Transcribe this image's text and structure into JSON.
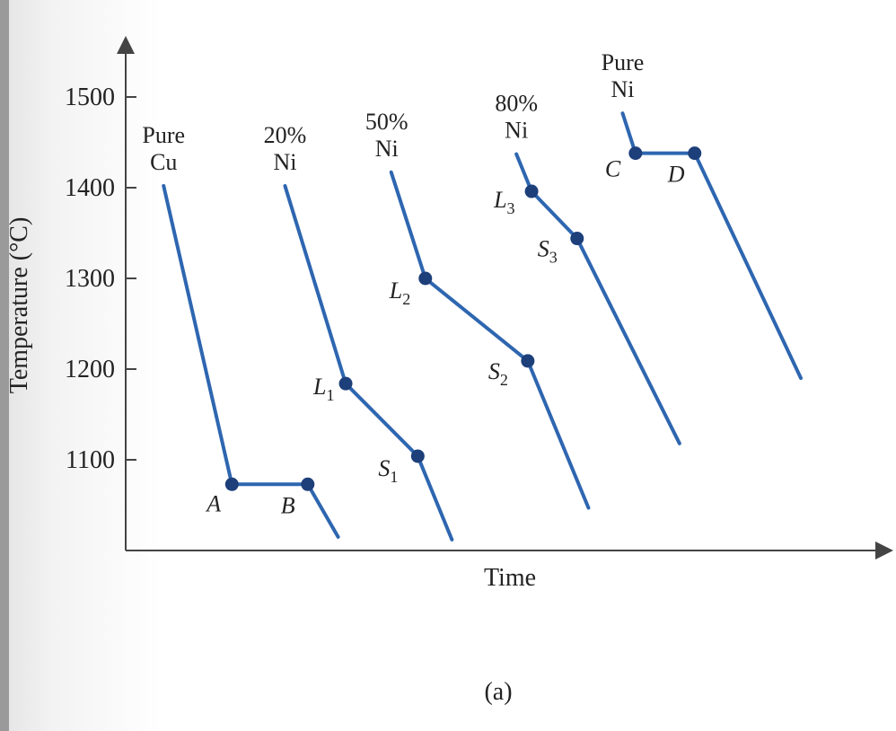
{
  "chart_data": {
    "type": "line",
    "ylabel": "Temperature (°C)",
    "xlabel": "Time",
    "yticks": [
      "1500",
      "1400",
      "1300",
      "1200",
      "1100"
    ],
    "ylim": [
      1010,
      1560
    ],
    "caption": "(a)",
    "colors": {
      "line": "#2e66b0",
      "marker": "#1d3f7a",
      "axis": "#444444"
    },
    "series": [
      {
        "label_lines": [
          "Pure",
          "Cu"
        ],
        "points": [
          {
            "t": 0.05,
            "temp": 1402
          },
          {
            "t": 0.14,
            "temp": 1073,
            "label": "A",
            "marker": true
          },
          {
            "t": 0.24,
            "temp": 1073,
            "label": "B",
            "marker": true
          },
          {
            "t": 0.28,
            "temp": 1015
          }
        ]
      },
      {
        "label_lines": [
          "20%",
          "Ni"
        ],
        "points": [
          {
            "t": 0.21,
            "temp": 1402
          },
          {
            "t": 0.29,
            "temp": 1184,
            "label": "L",
            "sub": "1",
            "marker": true
          },
          {
            "t": 0.385,
            "temp": 1104,
            "label": "S",
            "sub": "1",
            "marker": true
          },
          {
            "t": 0.43,
            "temp": 1012
          }
        ]
      },
      {
        "label_lines": [
          "50%",
          "Ni"
        ],
        "points": [
          {
            "t": 0.35,
            "temp": 1417
          },
          {
            "t": 0.395,
            "temp": 1300,
            "label": "L",
            "sub": "2",
            "marker": true
          },
          {
            "t": 0.53,
            "temp": 1209,
            "label": "S",
            "sub": "2",
            "marker": true
          },
          {
            "t": 0.61,
            "temp": 1047
          }
        ]
      },
      {
        "label_lines": [
          "80%",
          "Ni"
        ],
        "points": [
          {
            "t": 0.515,
            "temp": 1437
          },
          {
            "t": 0.535,
            "temp": 1396,
            "label": "L",
            "sub": "3",
            "marker": true
          },
          {
            "t": 0.595,
            "temp": 1344,
            "label": "S",
            "sub": "3",
            "marker": true
          },
          {
            "t": 0.73,
            "temp": 1118
          }
        ]
      },
      {
        "label_lines": [
          "Pure",
          "Ni"
        ],
        "points": [
          {
            "t": 0.655,
            "temp": 1482
          },
          {
            "t": 0.672,
            "temp": 1438,
            "label": "C",
            "marker": true
          },
          {
            "t": 0.75,
            "temp": 1438,
            "label": "D",
            "marker": true
          },
          {
            "t": 0.89,
            "temp": 1190
          }
        ]
      }
    ]
  }
}
